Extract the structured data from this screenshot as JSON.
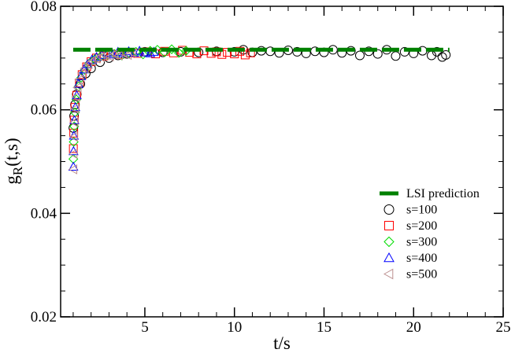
{
  "chart_data": {
    "type": "scatter",
    "xlabel": "t/s",
    "ylabel_main": "g",
    "ylabel_sub": "R",
    "ylabel_rest": "(t,s)",
    "xlim": [
      0.3,
      25
    ],
    "ylim": [
      0.02,
      0.08
    ],
    "xticks": [
      5,
      10,
      15,
      20,
      25
    ],
    "xtick_labels": [
      "5",
      "10",
      "15",
      "20",
      "25"
    ],
    "yticks": [
      0.02,
      0.04,
      0.06,
      0.08
    ],
    "ytick_labels": [
      "0.02",
      "0.04",
      "0.06",
      "0.08"
    ],
    "grid": false,
    "legend_position": "lower-right",
    "reference_line": {
      "name": "LSI prediction",
      "y": 0.0716,
      "x_range": [
        1.0,
        22.0
      ],
      "color": "#008000"
    },
    "series": [
      {
        "name": "s=100",
        "marker": "circle",
        "color": "#000000",
        "x": [
          1.01,
          1.05,
          1.1,
          1.2,
          1.4,
          1.7,
          2.0,
          2.5,
          3.0,
          3.5,
          4.0,
          5.0,
          6.0,
          7.0,
          8.0,
          9.0,
          10.0,
          10.5,
          11.0,
          11.5,
          12.0,
          12.5,
          13.0,
          13.5,
          14.0,
          14.5,
          15.0,
          15.5,
          16.0,
          16.5,
          17.0,
          17.5,
          18.0,
          18.5,
          19.0,
          19.5,
          20.0,
          20.5,
          21.0,
          21.3,
          21.6,
          21.8
        ],
        "y": [
          0.0565,
          0.0588,
          0.061,
          0.063,
          0.065,
          0.067,
          0.068,
          0.0692,
          0.07,
          0.0705,
          0.0708,
          0.0712,
          0.0711,
          0.0712,
          0.0711,
          0.0713,
          0.0712,
          0.0716,
          0.0711,
          0.0714,
          0.0713,
          0.071,
          0.0715,
          0.0712,
          0.0709,
          0.0713,
          0.0711,
          0.0716,
          0.071,
          0.0714,
          0.0705,
          0.0713,
          0.0708,
          0.0716,
          0.0704,
          0.0712,
          0.0709,
          0.0714,
          0.0705,
          0.0712,
          0.0702,
          0.0706
        ]
      },
      {
        "name": "s=200",
        "marker": "square",
        "color": "#ff0000",
        "x": [
          1.01,
          1.03,
          1.06,
          1.1,
          1.2,
          1.35,
          1.5,
          1.75,
          2.0,
          2.3,
          2.7,
          3.1,
          3.6,
          4.1,
          4.6,
          5.1,
          5.6,
          6.1,
          6.6,
          7.1,
          7.5,
          7.9,
          8.3,
          8.7,
          9.0,
          9.3,
          9.6,
          10.0,
          10.3,
          10.6,
          10.9
        ],
        "y": [
          0.0525,
          0.0555,
          0.058,
          0.0605,
          0.0628,
          0.0652,
          0.0668,
          0.0683,
          0.0693,
          0.07,
          0.0704,
          0.0708,
          0.0707,
          0.071,
          0.0709,
          0.0712,
          0.0708,
          0.0713,
          0.071,
          0.0715,
          0.0711,
          0.0708,
          0.0714,
          0.0709,
          0.0712,
          0.0707,
          0.0711,
          0.0708,
          0.0713,
          0.0706,
          0.071
        ]
      },
      {
        "name": "s=300",
        "marker": "diamond",
        "color": "#00dd00",
        "x": [
          1.01,
          1.03,
          1.06,
          1.1,
          1.18,
          1.3,
          1.45,
          1.65,
          1.9,
          2.2,
          2.5,
          2.9,
          3.3,
          3.7,
          4.1,
          4.5,
          4.9,
          5.3,
          5.7,
          6.1,
          6.5,
          6.9,
          7.3
        ],
        "y": [
          0.0505,
          0.0538,
          0.0568,
          0.0595,
          0.062,
          0.0645,
          0.0662,
          0.0677,
          0.069,
          0.0698,
          0.0702,
          0.0706,
          0.0708,
          0.0705,
          0.071,
          0.0712,
          0.0707,
          0.0714,
          0.0716,
          0.0711,
          0.0717,
          0.071,
          0.0714
        ]
      },
      {
        "name": "s=400",
        "marker": "triangle-up",
        "color": "#0000ff",
        "x": [
          1.01,
          1.02,
          1.04,
          1.07,
          1.12,
          1.2,
          1.3,
          1.45,
          1.6,
          1.8,
          2.05,
          2.3,
          2.6,
          2.9,
          3.2,
          3.5,
          3.8,
          4.1,
          4.4,
          4.7,
          5.0,
          5.3,
          5.5
        ],
        "y": [
          0.049,
          0.052,
          0.055,
          0.058,
          0.0605,
          0.0628,
          0.065,
          0.0665,
          0.0678,
          0.0688,
          0.0697,
          0.0702,
          0.0706,
          0.071,
          0.0707,
          0.0712,
          0.0709,
          0.0713,
          0.071,
          0.0714,
          0.0711,
          0.0709,
          0.0712
        ]
      },
      {
        "name": "s=500",
        "marker": "triangle-left",
        "color": "#bc8f8f",
        "x": [
          1.01,
          1.02,
          1.04,
          1.07,
          1.11,
          1.17,
          1.25,
          1.35,
          1.5,
          1.65,
          1.85,
          2.05,
          2.3,
          2.55,
          2.8,
          3.05,
          3.3,
          3.55,
          3.8,
          4.05,
          4.3
        ],
        "y": [
          0.0485,
          0.0515,
          0.0548,
          0.0576,
          0.0602,
          0.0625,
          0.0643,
          0.0658,
          0.0671,
          0.068,
          0.0688,
          0.0694,
          0.0699,
          0.0702,
          0.0705,
          0.0703,
          0.0707,
          0.0705,
          0.0709,
          0.0706,
          0.071
        ]
      }
    ]
  }
}
